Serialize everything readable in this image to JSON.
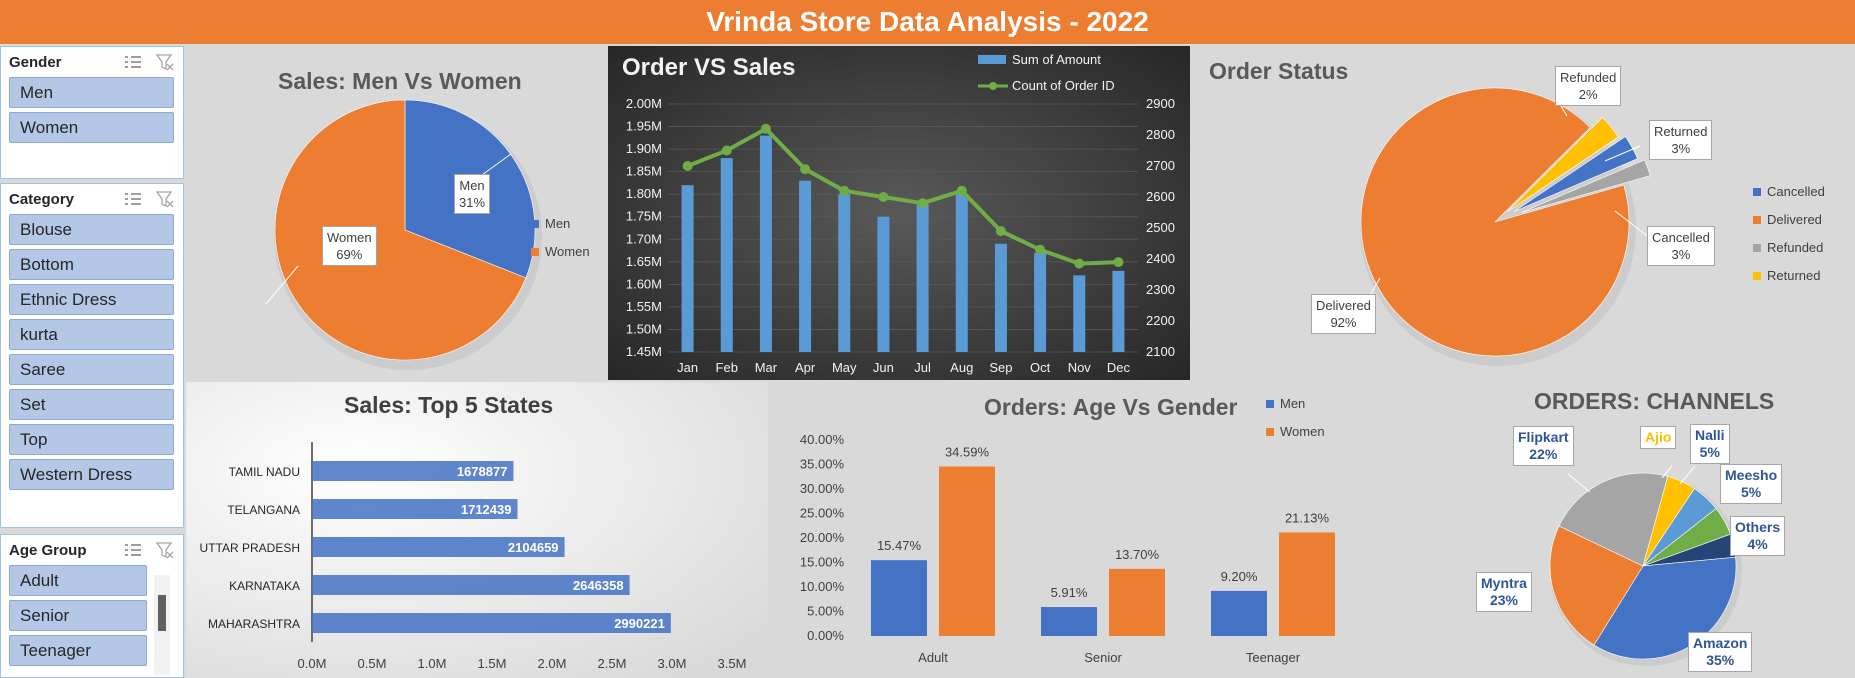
{
  "header": {
    "title": "Vrinda Store Data Analysis - 2022"
  },
  "slicers": {
    "gender": {
      "title": "Gender",
      "items": [
        "Men",
        "Women"
      ]
    },
    "category": {
      "title": "Category",
      "items": [
        "Blouse",
        "Bottom",
        "Ethnic Dress",
        "kurta",
        "Saree",
        "Set",
        "Top",
        "Western Dress"
      ]
    },
    "age_group": {
      "title": "Age Group",
      "items": [
        "Adult",
        "Senior",
        "Teenager"
      ]
    }
  },
  "colors": {
    "blue": "#4472c4",
    "orange": "#ed7d31",
    "gray": "#a5a5a5",
    "yellow": "#ffc000",
    "green": "#70ad47",
    "lightblue": "#5b9bd5",
    "navy": "#264478",
    "banner": "#ed7d31"
  },
  "chart_data": [
    {
      "id": "sales_men_women",
      "type": "pie",
      "title": "Sales: Men Vs Women",
      "legend_position": "right",
      "labels": [
        "Men",
        "Women"
      ],
      "values": [
        31,
        69
      ],
      "data_labels": [
        {
          "name": "Men",
          "pct": "31%"
        },
        {
          "name": "Women",
          "pct": "69%"
        }
      ]
    },
    {
      "id": "order_vs_sales",
      "type": "bar",
      "title": "Order VS Sales",
      "categories": [
        "Jan",
        "Feb",
        "Mar",
        "Apr",
        "May",
        "Jun",
        "Jul",
        "Aug",
        "Sep",
        "Oct",
        "Nov",
        "Dec"
      ],
      "series": [
        {
          "name": "Sum of Amount",
          "type": "bar",
          "axis": "left",
          "values": [
            1.82,
            1.88,
            1.93,
            1.83,
            1.8,
            1.75,
            1.78,
            1.8,
            1.69,
            1.67,
            1.62,
            1.63
          ]
        },
        {
          "name": "Count of Order ID",
          "type": "line",
          "axis": "right",
          "values": [
            2700,
            2750,
            2820,
            2690,
            2620,
            2600,
            2580,
            2620,
            2490,
            2430,
            2385,
            2390
          ]
        }
      ],
      "ylim_left": [
        1.45,
        2.0
      ],
      "yticks_left": [
        "2.00M",
        "1.95M",
        "1.90M",
        "1.85M",
        "1.80M",
        "1.75M",
        "1.70M",
        "1.65M",
        "1.60M",
        "1.55M",
        "1.50M",
        "1.45M"
      ],
      "ylim_right": [
        2100,
        2900
      ],
      "yticks_right": [
        "2900",
        "2800",
        "2700",
        "2600",
        "2500",
        "2400",
        "2300",
        "2200",
        "2100"
      ],
      "grid": true,
      "legend_position": "top-right"
    },
    {
      "id": "order_status",
      "type": "pie",
      "title": "Order Status",
      "legend_position": "right",
      "labels": [
        "Cancelled",
        "Delivered",
        "Refunded",
        "Returned"
      ],
      "values": [
        3,
        92,
        2,
        3
      ],
      "data_labels": [
        {
          "name": "Cancelled",
          "pct": "3%"
        },
        {
          "name": "Delivered",
          "pct": "92%"
        },
        {
          "name": "Refunded",
          "pct": "2%"
        },
        {
          "name": "Returned",
          "pct": "3%"
        }
      ]
    },
    {
      "id": "top5_states",
      "type": "bar",
      "orientation": "horizontal",
      "title": "Sales: Top 5 States",
      "categories": [
        "MAHARASHTRA",
        "KARNATAKA",
        "UTTAR PRADESH",
        "TELANGANA",
        "TAMIL NADU"
      ],
      "values": [
        2990221,
        2646358,
        2104659,
        1712439,
        1678877
      ],
      "data_labels": [
        "2990221",
        "2646358",
        "2104659",
        "1712439",
        "1678877"
      ],
      "xlim": [
        0,
        3500000
      ],
      "xticks": [
        "0.0M",
        "0.5M",
        "1.0M",
        "1.5M",
        "2.0M",
        "2.5M",
        "3.0M",
        "3.5M"
      ]
    },
    {
      "id": "age_vs_gender",
      "type": "bar",
      "title": "Orders: Age Vs Gender",
      "categories": [
        "Adult",
        "Senior",
        "Teenager"
      ],
      "series": [
        {
          "name": "Men",
          "values": [
            15.47,
            5.91,
            9.2
          ],
          "labels": [
            "15.47%",
            "5.91%",
            "9.20%"
          ]
        },
        {
          "name": "Women",
          "values": [
            34.59,
            13.7,
            21.13
          ],
          "labels": [
            "34.59%",
            "13.70%",
            "21.13%"
          ]
        }
      ],
      "ylim": [
        0,
        40
      ],
      "yticks": [
        "40.00%",
        "35.00%",
        "30.00%",
        "25.00%",
        "20.00%",
        "15.00%",
        "10.00%",
        "5.00%",
        "0.00%"
      ],
      "legend_position": "top-right"
    },
    {
      "id": "orders_channels",
      "type": "pie",
      "title": "ORDERS: CHANNELS",
      "labels": [
        "Amazon",
        "Myntra",
        "Flipkart",
        "Ajio",
        "Nalli",
        "Meesho",
        "Others"
      ],
      "values": [
        35,
        23,
        22,
        5,
        5,
        5,
        4
      ],
      "data_labels": [
        {
          "name": "Amazon",
          "pct": "35%"
        },
        {
          "name": "Myntra",
          "pct": "23%"
        },
        {
          "name": "Flipkart",
          "pct": "22%"
        },
        {
          "name": "Ajio",
          "pct": ""
        },
        {
          "name": "Nalli",
          "pct": "5%"
        },
        {
          "name": "Meesho",
          "pct": "5%"
        },
        {
          "name": "Others",
          "pct": "4%"
        }
      ]
    }
  ]
}
